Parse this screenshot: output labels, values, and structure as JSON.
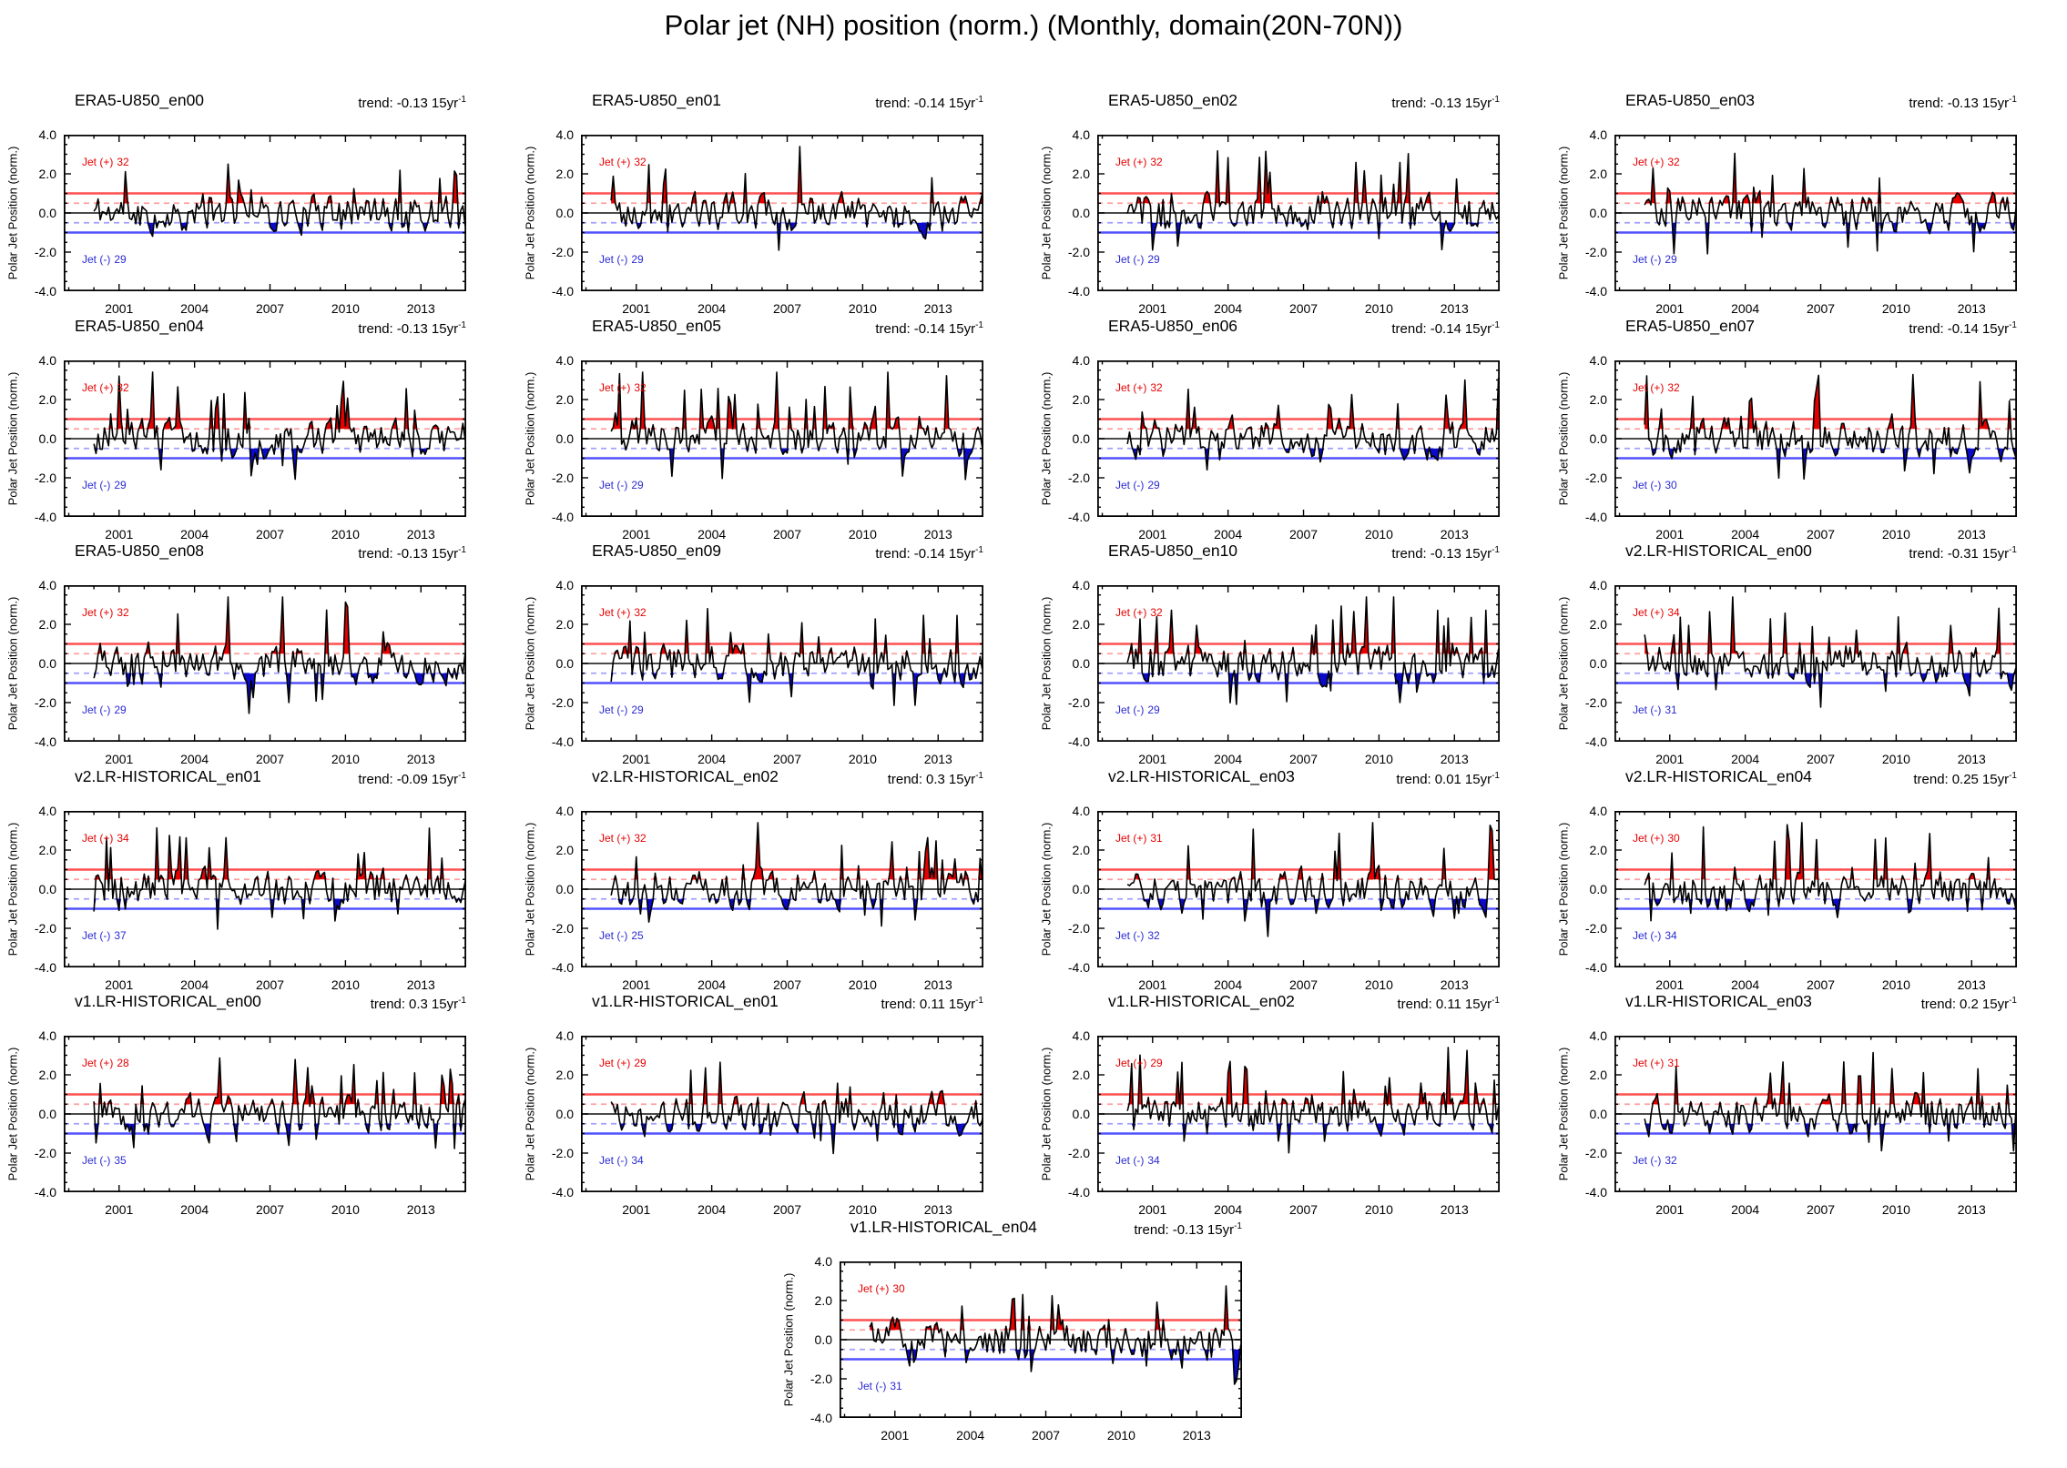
{
  "chart_data": {
    "type": "line",
    "title": "Polar jet (NH) position (norm.) (Monthly, domain(20N-70N))",
    "shared": {
      "ylabel": "Polar Jet Position (norm.)",
      "ylim": [
        -4.0,
        4.0
      ],
      "y_tick_labels": [
        "4.0",
        "2.0",
        "0.0",
        "-2.0",
        "-4.0"
      ],
      "y_tick_values": [
        4.0,
        2.0,
        0.0,
        -2.0,
        -4.0
      ],
      "y_minor_step": 0.5,
      "x_tick_labels": [
        "2001",
        "2004",
        "2007",
        "2010",
        "2013"
      ],
      "x_tick_values": [
        2001,
        2004,
        2007,
        2010,
        2013
      ],
      "x_minor_step": 1,
      "x_range": [
        1998.8,
        2014.8
      ],
      "grid": false,
      "legend": "none",
      "labels": {
        "trend_prefix": "trend:",
        "trend_unit": "15yr",
        "trend_exp": "-1",
        "jet_plus_prefix": "Jet (+)",
        "jet_minus_prefix": "Jet (-)"
      },
      "ref_lines": [
        {
          "y": 1.0,
          "style": "solid",
          "color": "#ff5050",
          "width": 2.4
        },
        {
          "y": 0.5,
          "style": "dashed",
          "color": "#ffa0a0",
          "width": 1.8
        },
        {
          "y": 0.0,
          "style": "solid",
          "color": "#303030",
          "width": 1.8
        },
        {
          "y": -0.5,
          "style": "dashed",
          "color": "#a0a0ff",
          "width": 1.8
        },
        {
          "y": -1.0,
          "style": "solid",
          "color": "#5050ff",
          "width": 2.4
        }
      ],
      "fill_above_threshold": 0.5,
      "fill_below_threshold": -0.5,
      "fill_pos_color": "#e60000",
      "fill_neg_color": "#0a0ac8",
      "line_color": "#000000"
    },
    "panels": [
      {
        "title": "ERA5-U850_en00",
        "trend": "-0.13",
        "jet_plus": "32",
        "jet_minus": "29",
        "seed": 11
      },
      {
        "title": "ERA5-U850_en01",
        "trend": "-0.14",
        "jet_plus": "32",
        "jet_minus": "29",
        "seed": 48
      },
      {
        "title": "ERA5-U850_en02",
        "trend": "-0.13",
        "jet_plus": "32",
        "jet_minus": "29",
        "seed": 85
      },
      {
        "title": "ERA5-U850_en03",
        "trend": "-0.13",
        "jet_plus": "32",
        "jet_minus": "29",
        "seed": 122
      },
      {
        "title": "ERA5-U850_en04",
        "trend": "-0.13",
        "jet_plus": "32",
        "jet_minus": "29",
        "seed": 159
      },
      {
        "title": "ERA5-U850_en05",
        "trend": "-0.14",
        "jet_plus": "32",
        "jet_minus": "29",
        "seed": 196
      },
      {
        "title": "ERA5-U850_en06",
        "trend": "-0.14",
        "jet_plus": "32",
        "jet_minus": "29",
        "seed": 233
      },
      {
        "title": "ERA5-U850_en07",
        "trend": "-0.14",
        "jet_plus": "32",
        "jet_minus": "30",
        "seed": 270
      },
      {
        "title": "ERA5-U850_en08",
        "trend": "-0.13",
        "jet_plus": "32",
        "jet_minus": "29",
        "seed": 307
      },
      {
        "title": "ERA5-U850_en09",
        "trend": "-0.14",
        "jet_plus": "32",
        "jet_minus": "29",
        "seed": 344
      },
      {
        "title": "ERA5-U850_en10",
        "trend": "-0.13",
        "jet_plus": "32",
        "jet_minus": "29",
        "seed": 381
      },
      {
        "title": "v2.LR-HISTORICAL_en00",
        "trend": "-0.31",
        "jet_plus": "34",
        "jet_minus": "31",
        "seed": 418
      },
      {
        "title": "v2.LR-HISTORICAL_en01",
        "trend": "-0.09",
        "jet_plus": "34",
        "jet_minus": "37",
        "seed": 455
      },
      {
        "title": "v2.LR-HISTORICAL_en02",
        "trend": "0.3",
        "jet_plus": "32",
        "jet_minus": "25",
        "seed": 492
      },
      {
        "title": "v2.LR-HISTORICAL_en03",
        "trend": "0.01",
        "jet_plus": "31",
        "jet_minus": "32",
        "seed": 529
      },
      {
        "title": "v2.LR-HISTORICAL_en04",
        "trend": "0.25",
        "jet_plus": "30",
        "jet_minus": "34",
        "seed": 566
      },
      {
        "title": "v1.LR-HISTORICAL_en00",
        "trend": "0.3",
        "jet_plus": "28",
        "jet_minus": "35",
        "seed": 603
      },
      {
        "title": "v1.LR-HISTORICAL_en01",
        "trend": "0.11",
        "jet_plus": "29",
        "jet_minus": "34",
        "seed": 640
      },
      {
        "title": "v1.LR-HISTORICAL_en02",
        "trend": "0.11",
        "jet_plus": "29",
        "jet_minus": "34",
        "seed": 677
      },
      {
        "title": "v1.LR-HISTORICAL_en03",
        "trend": "0.2",
        "jet_plus": "31",
        "jet_minus": "32",
        "seed": 714
      },
      {
        "title": "v1.LR-HISTORICAL_en04",
        "trend": "-0.13",
        "jet_plus": "30",
        "jet_minus": "31",
        "seed": 751
      }
    ]
  }
}
